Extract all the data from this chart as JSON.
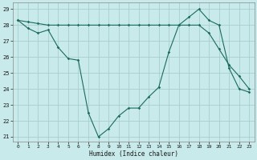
{
  "xlabel": "Humidex (Indice chaleur)",
  "bg_color": "#c8eaea",
  "grid_color": "#a8cece",
  "line_color": "#1a6b5a",
  "series1_x": [
    0,
    1,
    2,
    3,
    4,
    5,
    6,
    7,
    8,
    9,
    10,
    11,
    12,
    13,
    14,
    15,
    16,
    17,
    18,
    19,
    20,
    21,
    22,
    23
  ],
  "series1_y": [
    28.3,
    27.8,
    27.5,
    27.7,
    26.6,
    25.9,
    25.8,
    22.5,
    21.0,
    21.5,
    22.3,
    22.8,
    22.8,
    23.5,
    24.1,
    26.3,
    28.0,
    28.5,
    29.0,
    28.3,
    28.0,
    25.3,
    24.0,
    23.8
  ],
  "series2_x": [
    0,
    1,
    2,
    3,
    4,
    5,
    6,
    7,
    8,
    9,
    10,
    11,
    12,
    13,
    14,
    15,
    16,
    17,
    18,
    19,
    20,
    21,
    22,
    23
  ],
  "series2_y": [
    28.3,
    28.2,
    28.1,
    28.0,
    28.0,
    28.0,
    28.0,
    28.0,
    28.0,
    28.0,
    28.0,
    28.0,
    28.0,
    28.0,
    28.0,
    28.0,
    28.0,
    28.0,
    28.0,
    27.5,
    26.5,
    25.5,
    24.8,
    24.0
  ],
  "ylim_min": 20.7,
  "ylim_max": 29.4,
  "xlim_min": -0.5,
  "xlim_max": 23.5,
  "yticks": [
    21,
    22,
    23,
    24,
    25,
    26,
    27,
    28,
    29
  ],
  "xticks": [
    0,
    1,
    2,
    3,
    4,
    5,
    6,
    7,
    8,
    9,
    10,
    11,
    12,
    13,
    14,
    15,
    16,
    17,
    18,
    19,
    20,
    21,
    22,
    23
  ]
}
